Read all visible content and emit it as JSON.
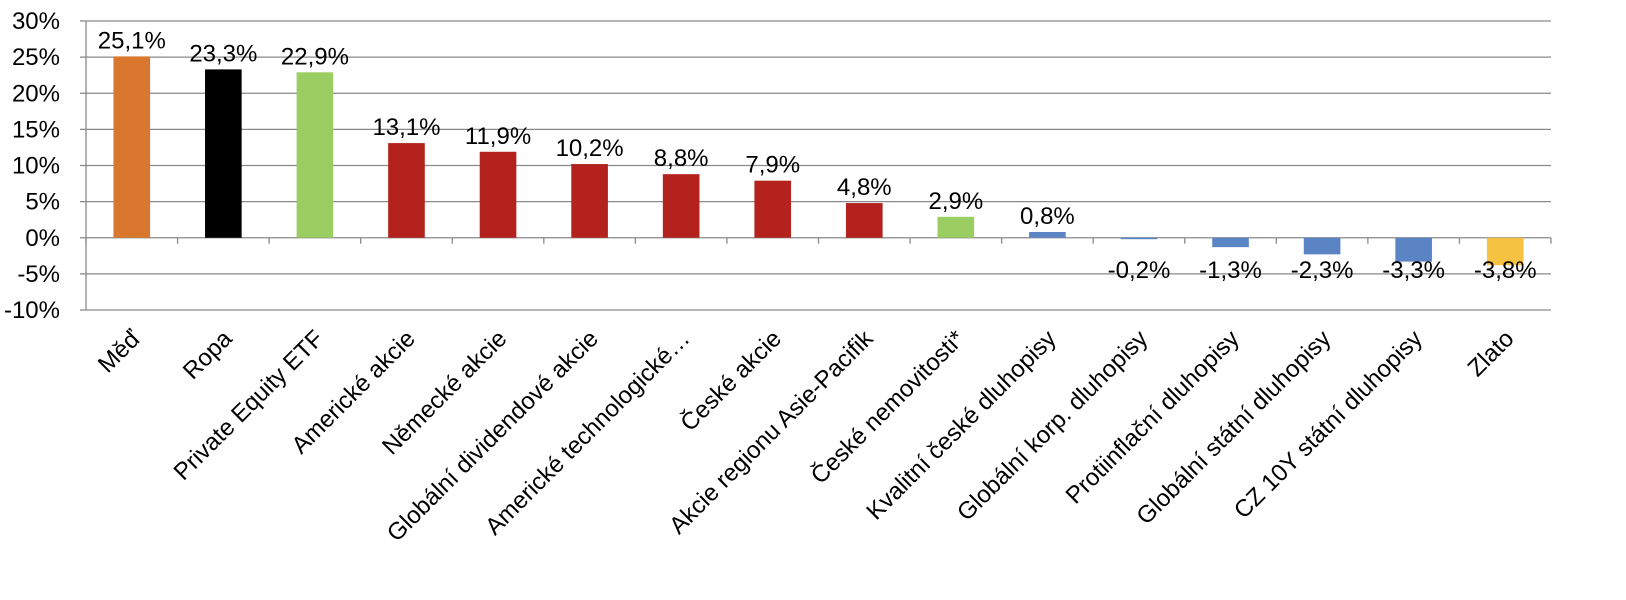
{
  "chart_data": {
    "type": "bar",
    "categories": [
      "Měď",
      "Ropa",
      "Private Equity ETF",
      "Americké akcie",
      "Německé akcie",
      "Globální dividendové akcie",
      "Americké technologické…",
      "České akcie",
      "Akcie regionu Asie-Pacifik",
      "České nemovitosti*",
      "Kvalitní české dluhopisy",
      "Globální korp. dluhopisy",
      "Protiinflační dluhopisy",
      "Globální státní dluhopisy",
      "CZ 10Y státní dluhopisy",
      "Zlato"
    ],
    "values": [
      25.1,
      23.3,
      22.9,
      13.1,
      11.9,
      10.2,
      8.8,
      7.9,
      4.8,
      2.9,
      0.8,
      -0.2,
      -1.3,
      -2.3,
      -3.3,
      -3.8
    ],
    "value_labels": [
      "25,1%",
      "23,3%",
      "22,9%",
      "13,1%",
      "11,9%",
      "10,2%",
      "8,8%",
      "7,9%",
      "4,8%",
      "2,9%",
      "0,8%",
      "-0,2%",
      "-1,3%",
      "-2,3%",
      "-3,3%",
      "-3,8%"
    ],
    "bar_colors": [
      "#D9772E",
      "#000000",
      "#9ACD62",
      "#B3221C",
      "#B3221C",
      "#B3221C",
      "#B3221C",
      "#B3221C",
      "#B3221C",
      "#9ACD62",
      "#5B84C4",
      "#5B84C4",
      "#5B84C4",
      "#5B84C4",
      "#5B84C4",
      "#F5C242"
    ],
    "yticks": [
      30,
      25,
      20,
      15,
      10,
      5,
      0,
      -5,
      -10
    ],
    "ytick_labels": [
      "30%",
      "25%",
      "20%",
      "15%",
      "10%",
      "5%",
      "0%",
      "-5%",
      "-10%"
    ],
    "ylim": [
      -10,
      30
    ],
    "title": "",
    "xlabel": "",
    "ylabel": "",
    "grid": true,
    "legend": "none"
  }
}
